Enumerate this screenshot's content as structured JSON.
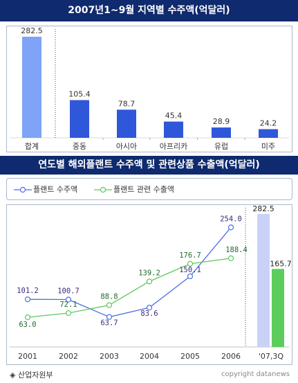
{
  "chart_data": [
    {
      "type": "bar",
      "title": "2007년1~9월 지역별 수주액(억달러)",
      "categories": [
        "합계",
        "중동",
        "아시아",
        "아프리카",
        "유럽",
        "미주"
      ],
      "values": [
        282.5,
        105.4,
        78.7,
        45.4,
        28.9,
        24.2
      ],
      "value_labels": [
        "282.5",
        "105.4",
        "78.7",
        "45.4",
        "28.9",
        "24.2"
      ],
      "ylim": [
        0,
        300
      ],
      "colors": {
        "total": "#7ea3f7",
        "region": "#2f57d9"
      }
    },
    {
      "type": "line",
      "title": "연도별 해외플랜트 수주액 및 관련상품 수출액(억달러)",
      "x": [
        "2001",
        "2002",
        "2003",
        "2004",
        "2005",
        "2006"
      ],
      "series": [
        {
          "name": "플랜트 수주액",
          "values": [
            101.2,
            100.7,
            63.7,
            83.6,
            150.1,
            254.0
          ],
          "labels": [
            "101.2",
            "100.7",
            "63.7",
            "83.6",
            "150.1",
            "254.0"
          ],
          "color": "#4a6fe3"
        },
        {
          "name": "플랜트 관련 수출액",
          "values": [
            63.0,
            72.1,
            88.8,
            139.2,
            176.7,
            188.4
          ],
          "labels": [
            "63.0",
            "72.1",
            "88.8",
            "139.2",
            "176.7",
            "188.4"
          ],
          "color": "#5cc85c"
        }
      ],
      "extra_category": "'07,3Q",
      "extra_bars": [
        {
          "series": "플랜트 수주액",
          "value": 282.5,
          "label": "282.5",
          "color": "#c9d1f7"
        },
        {
          "series": "플랜트 관련 수출액",
          "value": 165.7,
          "label": "165.7",
          "color": "#5ccd5c"
        }
      ],
      "ylim": [
        0,
        300
      ]
    }
  ],
  "footer": {
    "source": "◈ 산업자원부",
    "copyright": "copyright datanews"
  }
}
